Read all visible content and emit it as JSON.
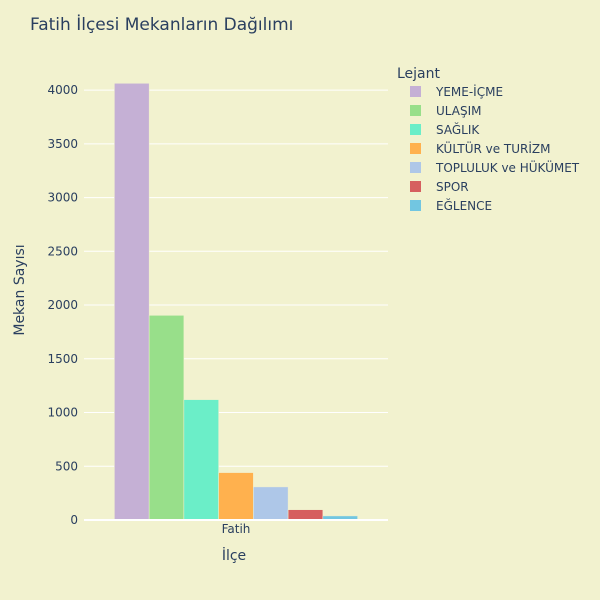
{
  "chart_data": {
    "type": "bar",
    "title": "Fatih İlçesi Mekanların Dağılımı",
    "xlabel": "İlçe",
    "ylabel": "Mekan Sayısı",
    "categories": [
      "Fatih"
    ],
    "ylim": [
      0,
      4280
    ],
    "yticks": [
      0,
      500,
      1000,
      1500,
      2000,
      2500,
      3000,
      3500,
      4000
    ],
    "grid": true,
    "legend": {
      "title": "Lejant",
      "placement": "top-right"
    },
    "series": [
      {
        "name": "YEME-İÇME",
        "values": [
          4063
        ],
        "color": "#c5b0d5"
      },
      {
        "name": "ULAŞIM",
        "values": [
          1904
        ],
        "color": "#98df8a"
      },
      {
        "name": "SAĞLIK",
        "values": [
          1120
        ],
        "color": "#6beec8"
      },
      {
        "name": "KÜLTÜR ve TURİZM",
        "values": [
          441
        ],
        "color": "#ffb14e"
      },
      {
        "name": "TOPLULUK ve HÜKÜMET",
        "values": [
          308
        ],
        "color": "#aec7e8"
      },
      {
        "name": "SPOR",
        "values": [
          96
        ],
        "color": "#d65f5f"
      },
      {
        "name": "EĞLENCE",
        "values": [
          38
        ],
        "color": "#72c6e1"
      }
    ]
  }
}
